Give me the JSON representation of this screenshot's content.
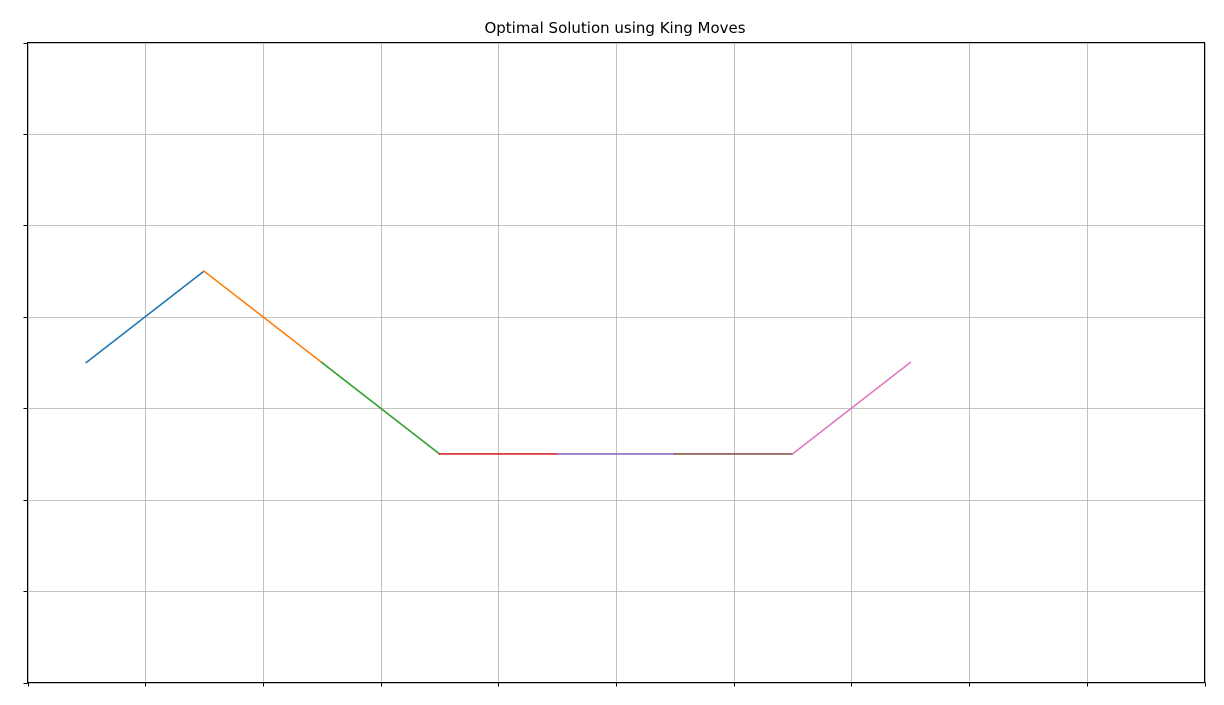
{
  "chart_data": {
    "type": "line",
    "title": "Optimal Solution using King Moves",
    "xlabel": "",
    "ylabel": "",
    "xlim": [
      0,
      10
    ],
    "ylim": [
      0,
      7
    ],
    "x_ticks": [
      0,
      1,
      2,
      3,
      4,
      5,
      6,
      7,
      8,
      9,
      10
    ],
    "y_ticks": [
      0,
      1,
      2,
      3,
      4,
      5,
      6,
      7
    ],
    "grid": true,
    "tick_labels_visible": false,
    "legend": "none",
    "series": [
      {
        "color": "#1f77b4",
        "x": [
          0.5,
          1.5
        ],
        "y": [
          3.5,
          4.5
        ]
      },
      {
        "color": "#ff7f0e",
        "x": [
          1.5,
          2.5
        ],
        "y": [
          4.5,
          3.5
        ]
      },
      {
        "color": "#2ca02c",
        "x": [
          2.5,
          3.5
        ],
        "y": [
          3.5,
          2.5
        ]
      },
      {
        "color": "#d62728",
        "x": [
          3.5,
          4.5
        ],
        "y": [
          2.5,
          2.5
        ]
      },
      {
        "color": "#9467bd",
        "x": [
          4.5,
          5.5
        ],
        "y": [
          2.5,
          2.5
        ]
      },
      {
        "color": "#8c564b",
        "x": [
          5.5,
          6.5
        ],
        "y": [
          2.5,
          2.5
        ]
      },
      {
        "color": "#e377c2",
        "x": [
          6.5,
          7.5
        ],
        "y": [
          2.5,
          3.5
        ]
      }
    ]
  }
}
